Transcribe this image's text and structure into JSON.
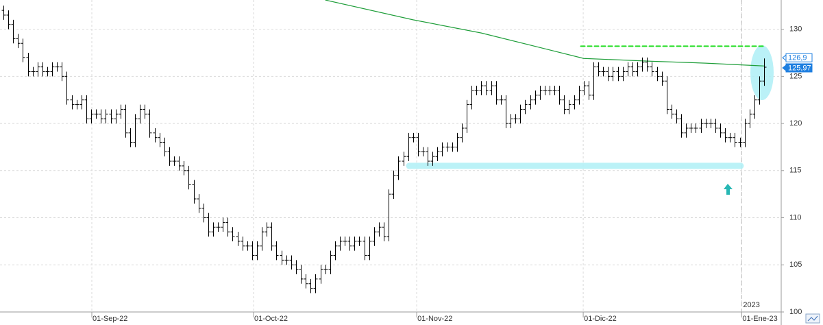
{
  "chart_data": {
    "type": "ohlc",
    "color": "#000000",
    "open": [
      132,
      131.5,
      130.5,
      129,
      128.5,
      127,
      125.5,
      125.5,
      126,
      125.5,
      125.5,
      126,
      126,
      125,
      122.5,
      122,
      122,
      122.5,
      120.5,
      121,
      121,
      120.5,
      121,
      120.5,
      121,
      121.5,
      119,
      118,
      120.5,
      121.5,
      121,
      119,
      118.5,
      118,
      117,
      116,
      116,
      115.5,
      115,
      113.5,
      112,
      111,
      110,
      108.5,
      109,
      109,
      109.5,
      108.5,
      108,
      107.5,
      107,
      107,
      106,
      107,
      108.5,
      109,
      107,
      106,
      105.5,
      105.5,
      105,
      104.5,
      103.5,
      103,
      102.5,
      103.5,
      104.5,
      104.5,
      106,
      107,
      107.5,
      107.5,
      107,
      107.5,
      107.5,
      106,
      107.5,
      108.5,
      109,
      108,
      112.5,
      114.5,
      116,
      116.5,
      118.5,
      118.5,
      117,
      117,
      116,
      116.5,
      117,
      117.5,
      117.5,
      117.5,
      118.5,
      119.5,
      122,
      123.5,
      123.5,
      124,
      123.5,
      124,
      122.5,
      122.5,
      120,
      120.5,
      120.5,
      121.5,
      122,
      122.5,
      123,
      123.5,
      123.5,
      123.5,
      123.5,
      122.5,
      121.5,
      122,
      122.5,
      123.5,
      124,
      123,
      126,
      125.5,
      125.5,
      125,
      125.5,
      125,
      125.5,
      126,
      125.5,
      126,
      126.5,
      126,
      125.5,
      125,
      124.5,
      121.5,
      121,
      120.5,
      119,
      119.5,
      119.5,
      119.5,
      120,
      120,
      120,
      119.5,
      119,
      118.5,
      118.5,
      118,
      118,
      120,
      121,
      122.5,
      124.5
    ],
    "high": [
      132.5,
      132,
      131,
      129.5,
      129,
      127.5,
      126,
      126.5,
      126.5,
      126,
      126.5,
      126.5,
      126.5,
      125.5,
      123,
      122.5,
      123,
      123,
      121.5,
      121.5,
      121.5,
      121.5,
      121.5,
      121.5,
      122,
      122,
      119.5,
      121,
      122,
      122,
      121.5,
      119.5,
      119,
      118.5,
      117.5,
      116.5,
      116.5,
      116,
      115.5,
      114,
      112.5,
      111.5,
      110.5,
      109.5,
      109.5,
      110,
      110,
      109,
      108.5,
      108,
      107.5,
      107.5,
      107.5,
      109,
      109.5,
      109.5,
      107.5,
      106.5,
      106,
      106,
      105.5,
      105,
      104,
      103.5,
      104,
      105,
      105,
      106.5,
      107.5,
      108,
      108,
      108,
      108,
      108,
      108,
      108,
      109,
      109.5,
      109.5,
      113,
      115,
      116.5,
      117,
      119,
      119,
      119,
      117.5,
      117.5,
      117,
      117.5,
      118,
      118,
      118,
      119,
      120,
      122.5,
      124,
      124,
      124.5,
      124.5,
      124.5,
      124.5,
      123,
      123,
      121,
      121,
      122,
      122.5,
      123,
      123.5,
      124,
      124,
      124,
      124,
      124,
      123,
      122.5,
      123,
      124,
      124.5,
      124.5,
      126.5,
      126.5,
      126,
      126,
      126,
      126,
      126,
      126.5,
      126.5,
      126.5,
      127,
      127,
      126.5,
      126,
      125.5,
      125,
      122,
      121.5,
      121,
      120,
      120,
      120,
      120.5,
      120.5,
      120.5,
      120.5,
      120,
      119.5,
      119,
      119,
      118.5,
      120.5,
      121.5,
      123,
      125,
      126.9
    ],
    "low": [
      131,
      130,
      128.5,
      128,
      126.5,
      125,
      125,
      125,
      125,
      125,
      125,
      125.5,
      124.5,
      122,
      121.5,
      121.5,
      121.5,
      120,
      120,
      120.5,
      120,
      120,
      120,
      120,
      120.5,
      118.5,
      117.5,
      117.5,
      120,
      120.5,
      118.5,
      118,
      117.5,
      116.5,
      115.5,
      115.5,
      115,
      114.5,
      113,
      111.5,
      110.5,
      109.5,
      108,
      108,
      108.5,
      108.5,
      108,
      107.5,
      107,
      106.5,
      106.5,
      105.5,
      105.5,
      106.5,
      108,
      106.5,
      105.5,
      105,
      105,
      104.5,
      104,
      103,
      102.5,
      102,
      102,
      103,
      104,
      104,
      105.5,
      106.5,
      107,
      106.5,
      106.5,
      107,
      105.5,
      105.5,
      107,
      108,
      107.5,
      107.5,
      112,
      114,
      115.5,
      116,
      118,
      116.5,
      116.5,
      115.5,
      115.5,
      116,
      116.5,
      117,
      117,
      117,
      118,
      119,
      121.5,
      123,
      123,
      123,
      123,
      122,
      122,
      119.5,
      119.5,
      120,
      120,
      121,
      121.5,
      122,
      122.5,
      123,
      123,
      123,
      122,
      121,
      121,
      121.5,
      122,
      123,
      122.5,
      122.5,
      125,
      125,
      124.5,
      124.5,
      124.5,
      124.5,
      125,
      125,
      125,
      125.5,
      125.5,
      125,
      124.5,
      124,
      121,
      120.5,
      120,
      118.5,
      118.5,
      119,
      119,
      119,
      119.5,
      119.5,
      119,
      118.5,
      118,
      118,
      117.5,
      117.5,
      117.5,
      119.5,
      120.5,
      122,
      124
    ],
    "close": [
      131.5,
      130.5,
      129,
      128.5,
      127,
      125.5,
      125.5,
      126,
      125.5,
      125.5,
      126,
      126,
      125,
      122.5,
      122,
      122,
      122.5,
      120.5,
      121,
      121,
      120.5,
      121,
      120.5,
      121,
      121.5,
      119,
      118,
      120.5,
      121.5,
      121,
      119,
      118.5,
      118,
      117,
      116,
      116,
      115.5,
      115,
      113.5,
      112,
      111,
      110,
      108.5,
      109,
      109,
      109.5,
      108.5,
      108,
      107.5,
      107,
      107,
      106,
      107,
      108.5,
      109,
      107,
      106,
      105.5,
      105.5,
      105,
      104.5,
      103.5,
      103,
      102.5,
      103.5,
      104.5,
      104.5,
      106,
      107,
      107.5,
      107.5,
      107,
      107.5,
      107.5,
      106,
      107.5,
      108.5,
      109,
      108,
      112.5,
      114.5,
      116,
      116.5,
      118.5,
      118.5,
      117,
      117,
      116,
      116.5,
      117,
      117.5,
      117.5,
      117.5,
      118.5,
      119.5,
      122,
      123.5,
      123.5,
      124,
      123.5,
      124,
      122.5,
      122.5,
      120,
      120.5,
      120.5,
      121.5,
      122,
      122.5,
      123,
      123.5,
      123.5,
      123.5,
      123.5,
      122.5,
      121.5,
      122,
      122.5,
      123.5,
      124,
      123,
      126,
      125.5,
      125.5,
      125,
      125.5,
      125,
      125.5,
      126,
      125.5,
      126,
      126.5,
      126,
      125.5,
      125,
      124.5,
      121.5,
      121,
      120.5,
      119,
      119.5,
      119.5,
      119.5,
      120,
      120,
      120,
      119.5,
      119,
      118.5,
      118.5,
      118,
      118,
      120,
      121,
      122.5,
      124.5,
      125.97
    ],
    "xlim": [
      -0.7,
      159.5
    ],
    "xticks": [
      {
        "value": 18.13,
        "label": "01-Sep-22"
      },
      {
        "value": 51.3,
        "label": "01-Oct-22"
      },
      {
        "value": 84.75,
        "label": "01-Nov-22"
      },
      {
        "value": 118.9,
        "label": "01-Dic-22"
      },
      {
        "value": 151.4,
        "label": "01-Ene-23"
      }
    ],
    "year_label": {
      "value": 151.4,
      "label": "2023"
    },
    "ylim": [
      100,
      133.1
    ],
    "yticks": [
      100,
      105,
      110,
      115,
      120,
      125,
      130
    ],
    "grid": true,
    "moving_average": {
      "color": "#1f9e3a",
      "x": [
        66,
        84,
        98,
        112,
        119,
        133,
        144,
        156
      ],
      "values": [
        133.1,
        131,
        129.6,
        127.8,
        126.9,
        126.6,
        126.4,
        126.1
      ]
    },
    "last_prices": {
      "color": "#1e7fe0",
      "values": [
        126.9,
        125.97
      ],
      "value_labels": [
        "126,9",
        "125,97"
      ]
    },
    "levels": [
      {
        "value": 128.2,
        "color": "#22dd22"
      },
      {
        "value": 115.5,
        "color": "#b4f1f7"
      }
    ]
  }
}
